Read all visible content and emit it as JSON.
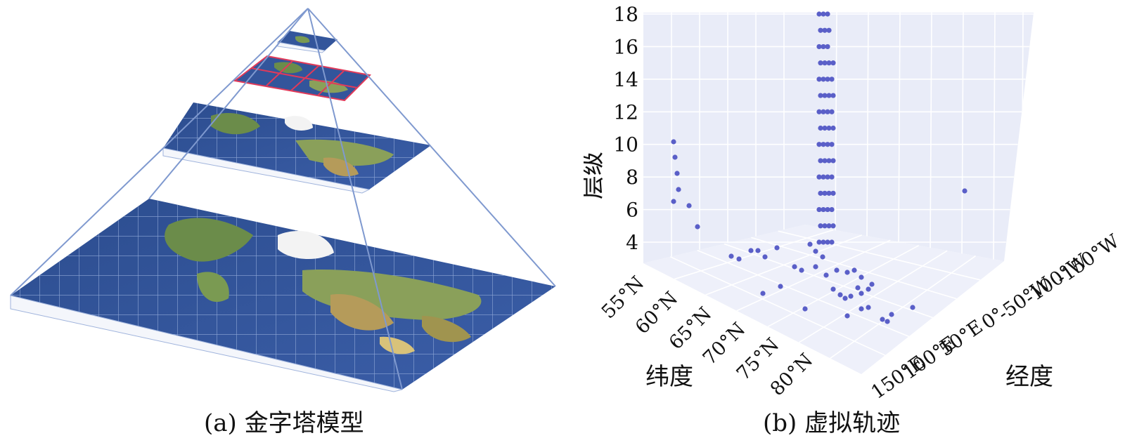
{
  "captions": {
    "a": "(a) 金字塔模型",
    "b": "(b) 虚拟轨迹"
  },
  "chart_data": {
    "type": "scatter",
    "zlabel": "层级",
    "ylabel_lat": "纬度",
    "xlabel_lon": "经度",
    "z_ticks": [
      "4",
      "6",
      "8",
      "10",
      "12",
      "14",
      "16",
      "18"
    ],
    "lat_ticks": [
      "55°N",
      "60°N",
      "65°N",
      "70°N",
      "75°N",
      "80°N"
    ],
    "lon_ticks": [
      "150°E",
      "100°E",
      "50°E",
      "0°",
      "-50°W",
      "-100°W",
      "-150°W"
    ],
    "zlim": [
      3,
      18
    ],
    "grid": true,
    "marker_color": "#5a5fc8",
    "pane_color": "#e9ecf8"
  }
}
